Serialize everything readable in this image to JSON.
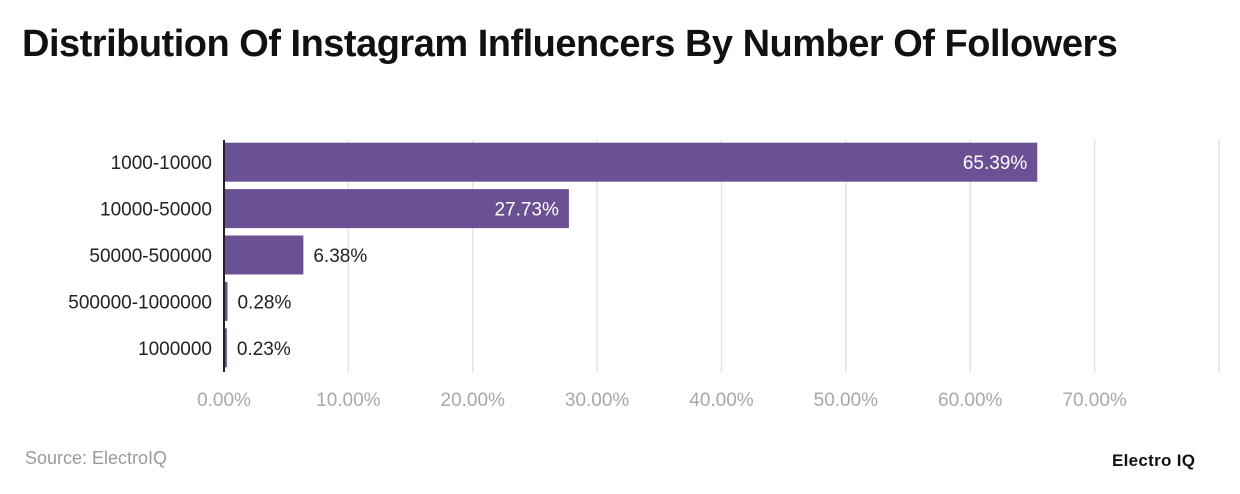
{
  "chart_data": {
    "type": "bar",
    "orientation": "horizontal",
    "title": "Distribution Of Instagram Influencers By Number Of Followers",
    "categories": [
      "1000-10000",
      "10000-50000",
      "50000-500000",
      "500000-1000000",
      "1000000"
    ],
    "values": [
      65.39,
      27.73,
      6.38,
      0.28,
      0.23
    ],
    "data_labels": [
      "65.39%",
      "27.73%",
      "6.38%",
      "0.28%",
      "0.23%"
    ],
    "xlim": [
      0,
      80
    ],
    "x_ticks": [
      0,
      10,
      20,
      30,
      40,
      50,
      60,
      70
    ],
    "x_tick_labels": [
      "0.00%",
      "10.00%",
      "20.00%",
      "30.00%",
      "40.00%",
      "50.00%",
      "60.00%",
      "70.00%"
    ],
    "grid": true,
    "bar_color": "#6b5193"
  },
  "source": "Source: ElectroIQ",
  "logo": "Electro IQ"
}
